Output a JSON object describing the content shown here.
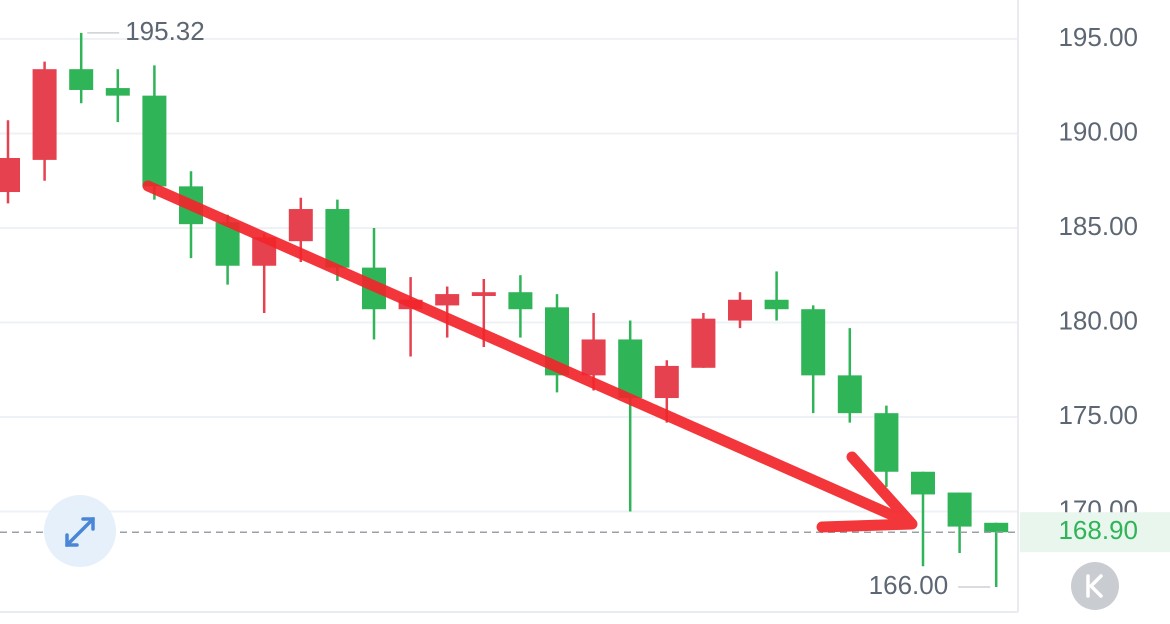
{
  "chart_data": {
    "type": "candlestick",
    "open": [
      186.9,
      188.6,
      193.4,
      192.4,
      192.0,
      187.2,
      185.3,
      183.0,
      184.3,
      186.0,
      182.9,
      180.7,
      180.9,
      181.4,
      181.6,
      180.8,
      177.2,
      179.1,
      176.0,
      177.6,
      180.1,
      181.2,
      180.7,
      177.2,
      175.2,
      172.1,
      171.0,
      169.4
    ],
    "high": [
      190.7,
      193.8,
      195.32,
      193.4,
      193.6,
      188.0,
      185.7,
      184.7,
      186.6,
      186.5,
      185.0,
      182.4,
      181.9,
      182.3,
      182.5,
      181.5,
      180.5,
      180.1,
      178.0,
      180.5,
      181.6,
      182.7,
      180.9,
      179.7,
      175.6,
      172.1,
      171.0,
      169.4
    ],
    "low": [
      186.3,
      187.5,
      191.6,
      190.6,
      186.5,
      183.4,
      182.0,
      180.5,
      183.2,
      182.2,
      179.1,
      178.2,
      179.2,
      178.7,
      179.2,
      176.3,
      176.4,
      170.0,
      174.7,
      177.6,
      179.7,
      180.1,
      175.2,
      174.7,
      171.3,
      167.1,
      167.8,
      166.0
    ],
    "close": [
      188.7,
      193.4,
      192.3,
      192.0,
      187.2,
      185.2,
      183.0,
      184.5,
      186.0,
      182.9,
      180.7,
      181.2,
      181.5,
      181.6,
      180.7,
      177.2,
      179.1,
      176.0,
      177.7,
      180.2,
      181.2,
      180.7,
      177.2,
      175.2,
      172.1,
      170.9,
      169.2,
      168.9
    ],
    "up_color": "#e5414f",
    "down_color": "#2fb457",
    "ylim": [
      164.68,
      197.06
    ],
    "yticks": [
      {
        "value": 170,
        "label": "170.00"
      },
      {
        "value": 175,
        "label": "175.00"
      },
      {
        "value": 180,
        "label": "180.00"
      },
      {
        "value": 185,
        "label": "185.00"
      },
      {
        "value": 190,
        "label": "190.00"
      },
      {
        "value": 195,
        "label": "195.00"
      }
    ],
    "grid": true,
    "high_label": 195.32,
    "low_label": {
      "value": 166,
      "label": "166.00"
    },
    "last_price": {
      "value": 168.9,
      "label": "168.90"
    }
  }
}
